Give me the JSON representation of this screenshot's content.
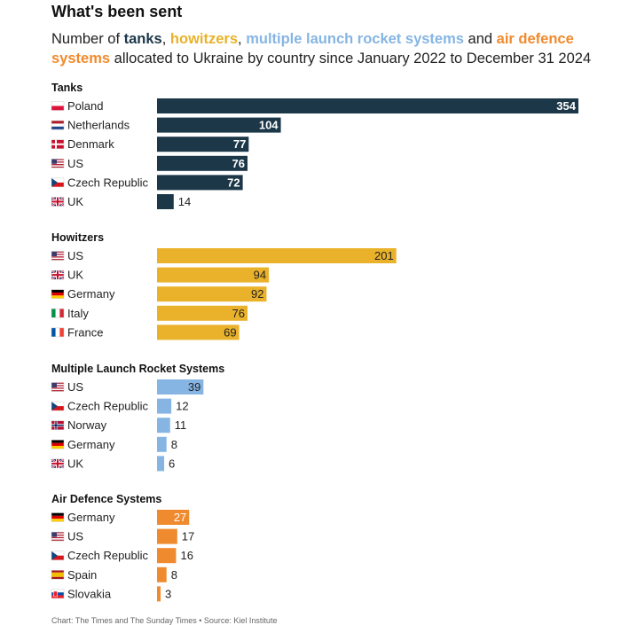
{
  "title": "What's been sent",
  "subtitle": {
    "prefix": "Number of ",
    "tanks": "tanks",
    "sep1": ", ",
    "howitzers": "howitzers",
    "sep2": ", ",
    "mlrs": "multiple launch rocket systems",
    "sep3": " and ",
    "air_defence": "air defence systems",
    "suffix": " allocated to Ukraine by country since January 2022 to December 31 2024"
  },
  "colors": {
    "tanks": "#1c3748",
    "howitzers": "#e9b22a",
    "mlrs": "#86b5e3",
    "air_defence": "#f08a2e"
  },
  "footer": "Chart: The Times and The Sunday Times • Source: Kiel Institute",
  "chart_data": [
    {
      "type": "bar",
      "title": "Tanks",
      "color_key": "tanks",
      "categories": [
        "Poland",
        "Netherlands",
        "Denmark",
        "US",
        "Czech Republic",
        "UK"
      ],
      "flags": [
        "poland",
        "netherlands",
        "denmark",
        "us",
        "czech",
        "uk"
      ],
      "values": [
        354,
        104,
        77,
        76,
        72,
        14
      ]
    },
    {
      "type": "bar",
      "title": "Howitzers",
      "color_key": "howitzers",
      "categories": [
        "US",
        "UK",
        "Germany",
        "Italy",
        "France"
      ],
      "flags": [
        "us",
        "uk",
        "germany",
        "italy",
        "france"
      ],
      "values": [
        201,
        94,
        92,
        76,
        69
      ]
    },
    {
      "type": "bar",
      "title": "Multiple Launch Rocket Systems",
      "color_key": "mlrs",
      "categories": [
        "US",
        "Czech Republic",
        "Norway",
        "Germany",
        "UK"
      ],
      "flags": [
        "us",
        "czech",
        "norway",
        "germany",
        "uk"
      ],
      "values": [
        39,
        12,
        11,
        8,
        6
      ]
    },
    {
      "type": "bar",
      "title": "Air Defence Systems",
      "color_key": "air_defence",
      "categories": [
        "Germany",
        "US",
        "Czech Republic",
        "Spain",
        "Slovakia"
      ],
      "flags": [
        "germany",
        "us",
        "czech",
        "spain",
        "slovakia"
      ],
      "values": [
        27,
        17,
        16,
        8,
        3
      ]
    }
  ]
}
